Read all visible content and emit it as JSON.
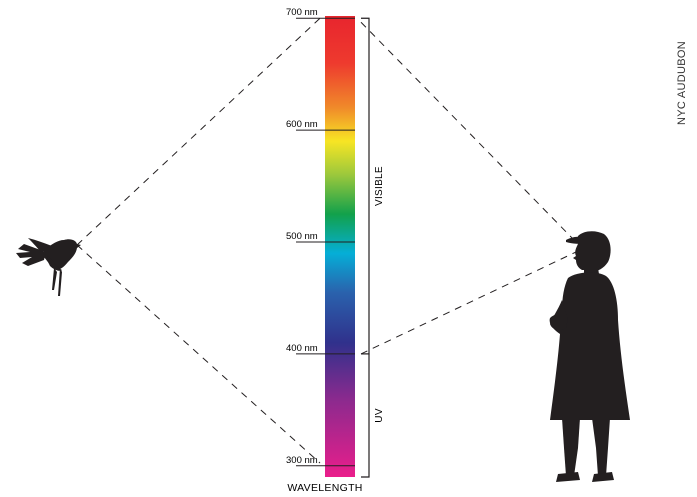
{
  "credit": "NYC AUDUBON",
  "axis_title": "WAVELENGTH",
  "wavelength_axis": {
    "unit": "nm",
    "range": [
      290,
      702
    ],
    "ticks": [
      {
        "value": 700,
        "label": "700 nm"
      },
      {
        "value": 600,
        "label": "600 nm"
      },
      {
        "value": 500,
        "label": "500 nm"
      },
      {
        "value": 400,
        "label": "400 nm"
      },
      {
        "value": 300,
        "label": "300 nm"
      }
    ]
  },
  "ranges": [
    {
      "label": "VISIBLE",
      "from": 400,
      "to": 700
    },
    {
      "label": "UV",
      "from": 290,
      "to": 400
    }
  ],
  "spectrum_colors": [
    {
      "nm": 700,
      "color": "#e8262e"
    },
    {
      "nm": 660,
      "color": "#ee3a2e"
    },
    {
      "nm": 620,
      "color": "#f08a2a"
    },
    {
      "nm": 590,
      "color": "#f7e524"
    },
    {
      "nm": 560,
      "color": "#9bc83c"
    },
    {
      "nm": 525,
      "color": "#12a14b"
    },
    {
      "nm": 490,
      "color": "#05aed7"
    },
    {
      "nm": 455,
      "color": "#2a62ad"
    },
    {
      "nm": 410,
      "color": "#30318c"
    },
    {
      "nm": 360,
      "color": "#8a2a8e"
    },
    {
      "nm": 290,
      "color": "#ea1e8b"
    }
  ],
  "sightlines": {
    "bird_sees": [
      290,
      700
    ],
    "human_sees": [
      400,
      700
    ]
  },
  "figures": {
    "bird": "bird-silhouette",
    "human": "human-silhouette"
  }
}
